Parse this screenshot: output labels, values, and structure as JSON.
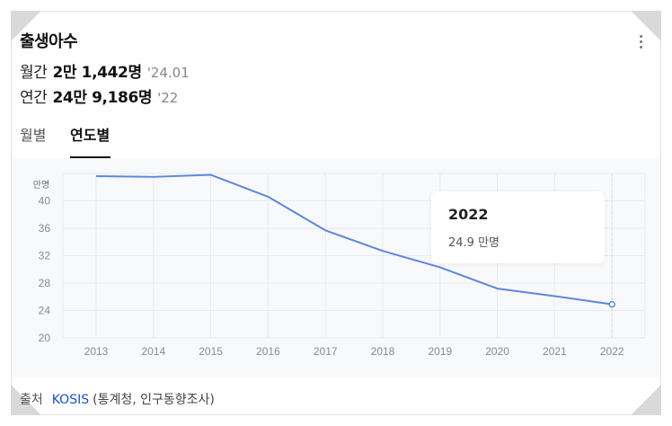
{
  "card": {
    "title": "출생아수",
    "stats": [
      {
        "label": "월간",
        "value": "2만 1,442명",
        "when": "'24.01"
      },
      {
        "label": "연간",
        "value": "24만 9,186명",
        "when": "'22"
      }
    ],
    "tabs": [
      {
        "label": "월별",
        "active": false
      },
      {
        "label": "연도별",
        "active": true
      }
    ]
  },
  "tooltip": {
    "year": "2022",
    "value": "24.9 만명"
  },
  "source": {
    "label": "출처",
    "link": "KOSIS",
    "detail": "(통계청, 인구동향조사)"
  },
  "colors": {
    "line": "#5b87e0",
    "grid": "#e8eaee",
    "tab_active": "#111111",
    "link": "#1a4fd0"
  },
  "chart_data": {
    "type": "line",
    "ylabel": "만명",
    "ylim": [
      20,
      44
    ],
    "yticks": [
      20,
      24,
      28,
      32,
      36,
      40
    ],
    "x": [
      "2013",
      "2014",
      "2015",
      "2016",
      "2017",
      "2018",
      "2019",
      "2020",
      "2021",
      "2022"
    ],
    "series": [
      {
        "values": [
          43.6,
          43.5,
          43.8,
          40.6,
          35.7,
          32.7,
          30.3,
          27.2,
          26.1,
          24.9
        ]
      }
    ],
    "highlight_index": 9,
    "grid": true
  }
}
